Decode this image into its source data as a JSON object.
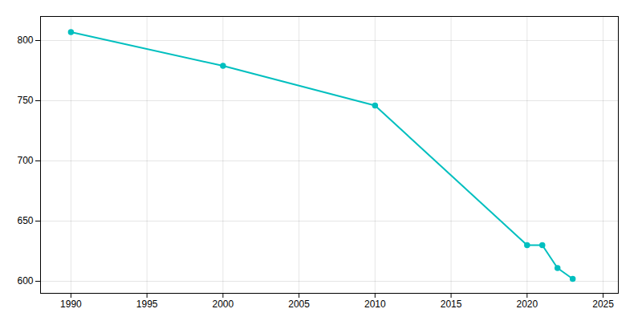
{
  "chart_data": {
    "type": "line",
    "x": [
      1990,
      2000,
      2010,
      2020,
      2021,
      2022,
      2023
    ],
    "values": [
      807,
      779,
      746,
      630,
      630,
      611,
      602
    ],
    "color": "#00BFBF",
    "marker": "circle",
    "xlim": [
      1988,
      2026
    ],
    "ylim": [
      590,
      820
    ],
    "xticks": [
      1990,
      1995,
      2000,
      2005,
      2010,
      2015,
      2020,
      2025
    ],
    "yticks": [
      600,
      650,
      700,
      750,
      800
    ],
    "grid": true
  }
}
